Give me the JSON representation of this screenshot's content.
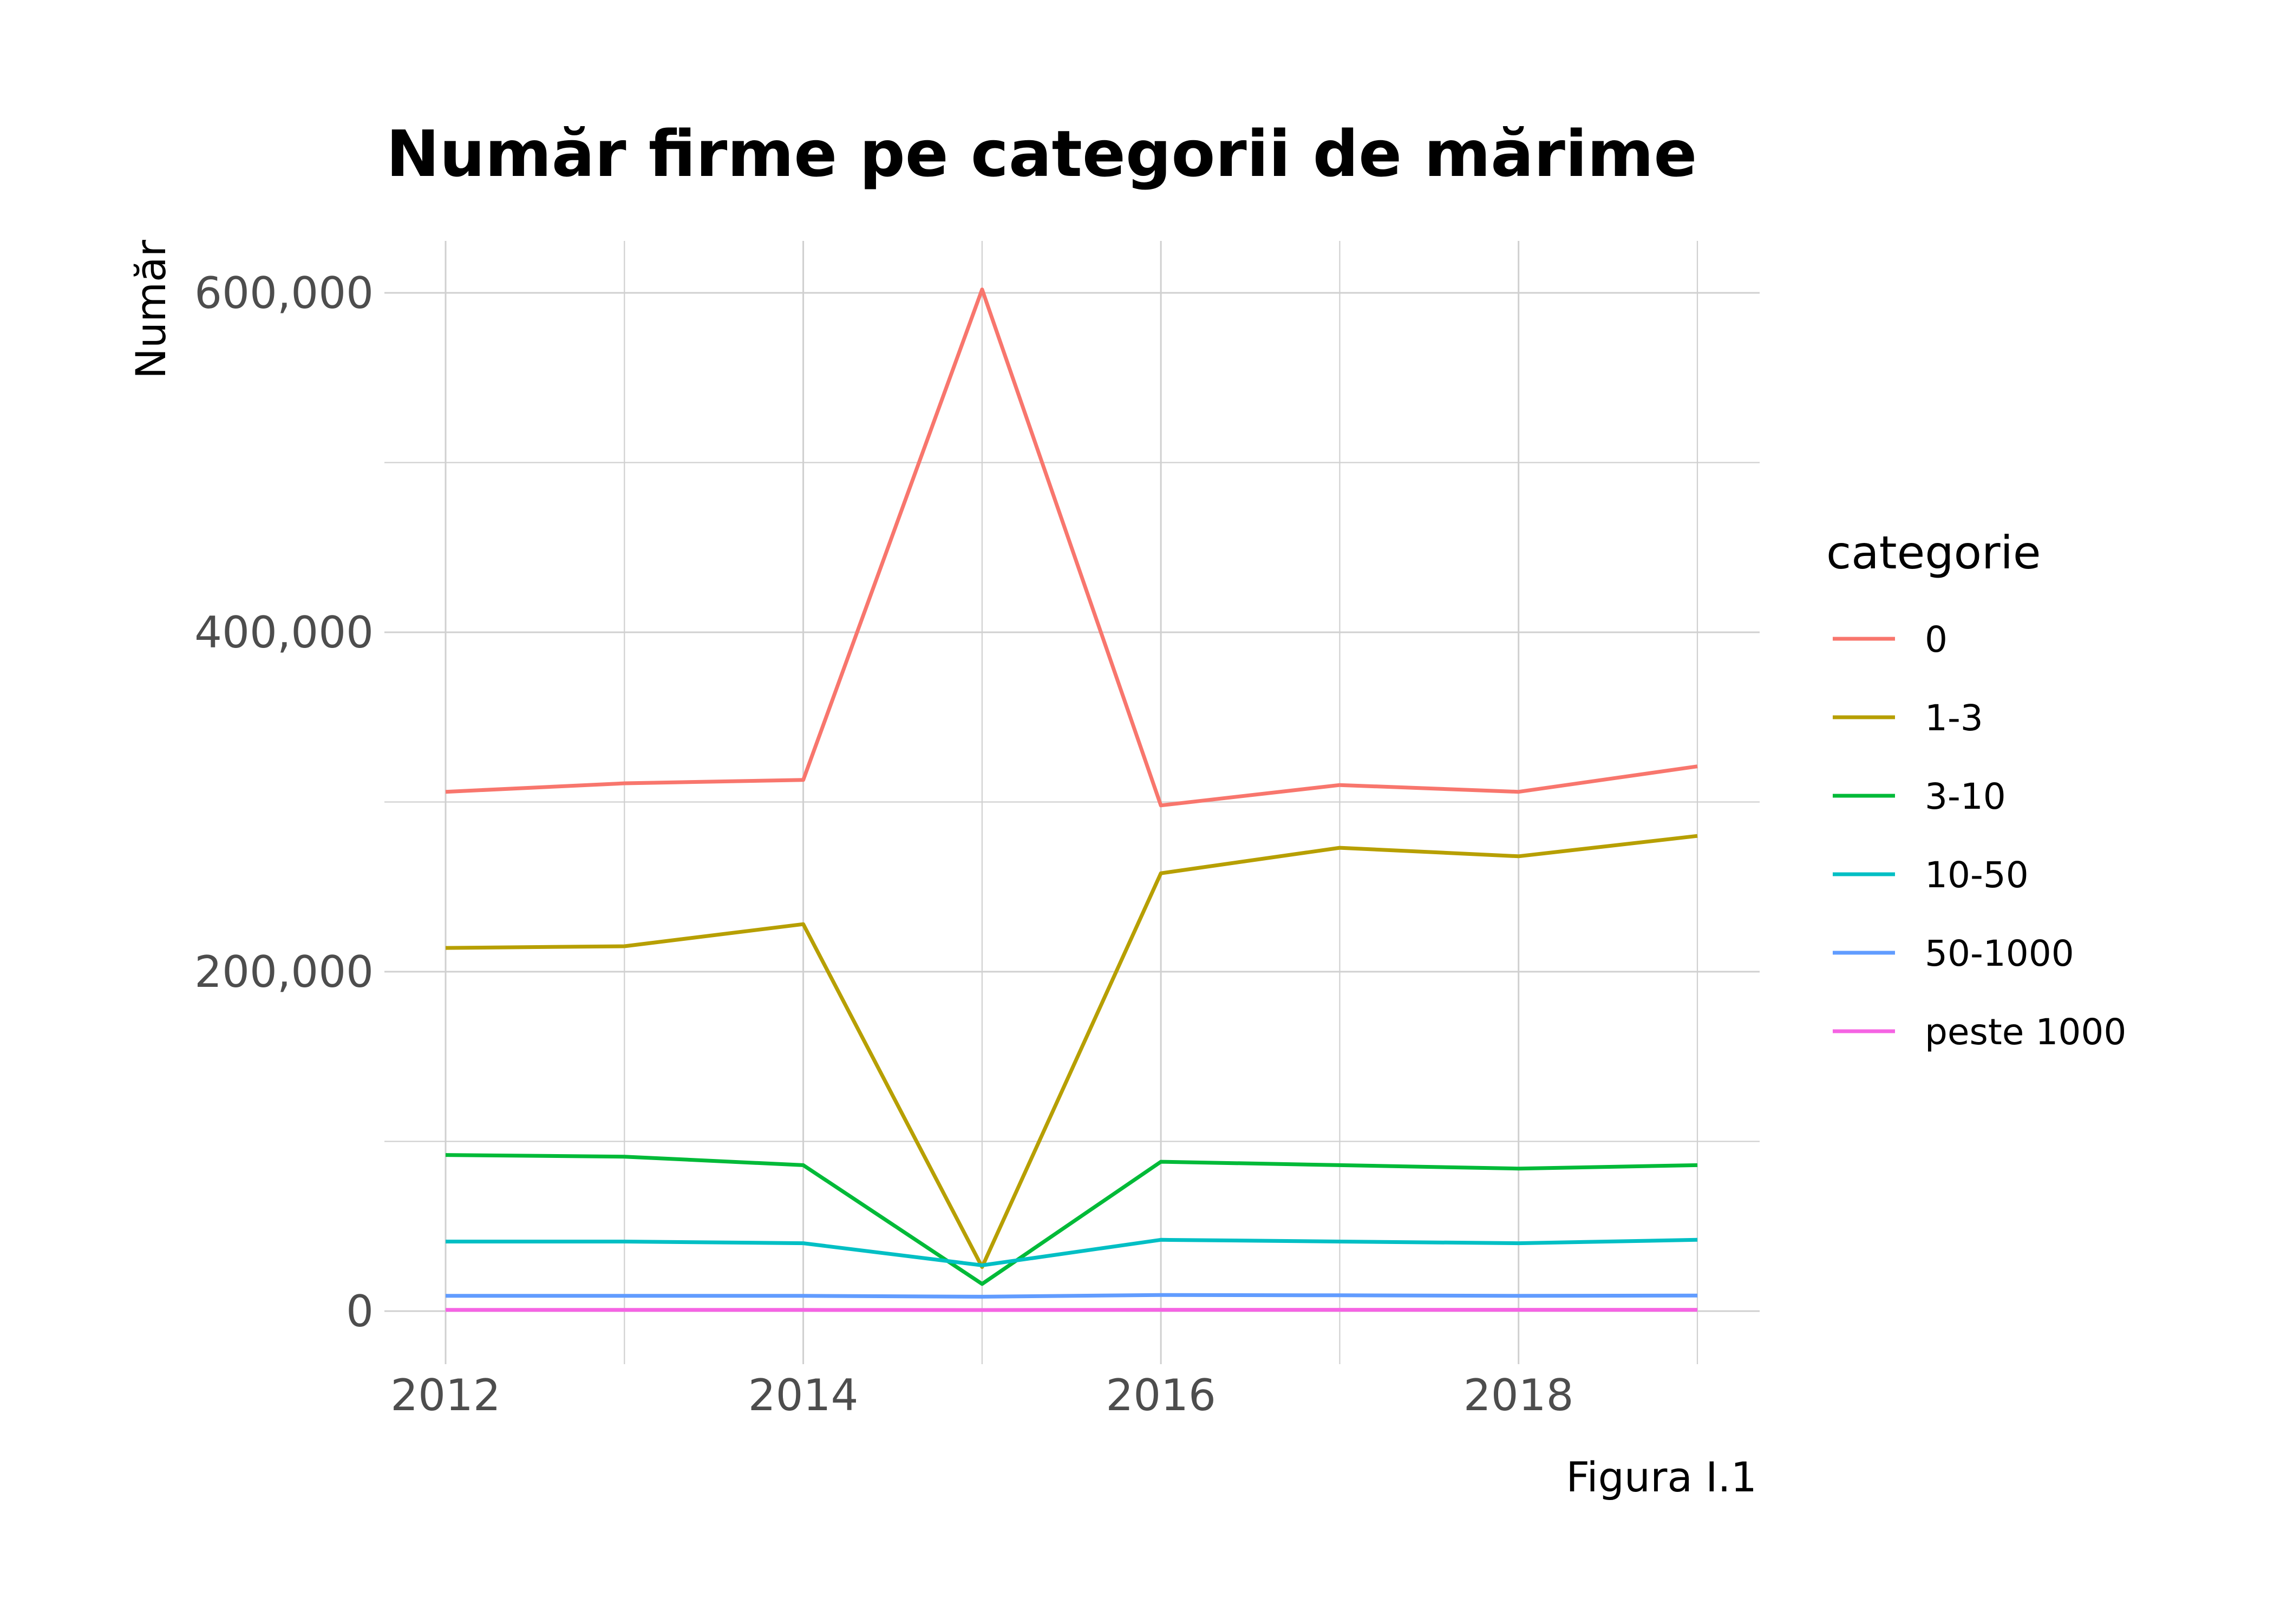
{
  "chart_data": {
    "type": "line",
    "title": "Număr firme pe categorii de mărime",
    "xlabel": "",
    "ylabel": "Număr",
    "caption": "Figura I.1",
    "x": [
      2012,
      2013,
      2014,
      2015,
      2016,
      2017,
      2018,
      2019
    ],
    "xlim": [
      2012,
      2019
    ],
    "ylim": [
      0,
      600000
    ],
    "x_ticks": [
      2012,
      2014,
      2016,
      2018
    ],
    "x_tick_labels": [
      "2012",
      "2014",
      "2016",
      "2018"
    ],
    "y_ticks": [
      0,
      200000,
      400000,
      600000
    ],
    "y_tick_labels": [
      "0",
      "200,000",
      "400,000",
      "600,000"
    ],
    "grid": true,
    "legend": {
      "title": "categorie",
      "position": "right"
    },
    "series": [
      {
        "name": "0",
        "color": "#F8766D",
        "values": [
          306000,
          311000,
          313000,
          602000,
          298000,
          310000,
          306000,
          321000
        ]
      },
      {
        "name": "1-3",
        "color": "#B79F00",
        "values": [
          214000,
          215000,
          228000,
          26000,
          258000,
          273000,
          268000,
          280000
        ]
      },
      {
        "name": "3-10",
        "color": "#00BA38",
        "values": [
          92000,
          91000,
          86000,
          16000,
          88000,
          86000,
          84000,
          86000
        ]
      },
      {
        "name": "10-50",
        "color": "#00BFC4",
        "values": [
          41000,
          41000,
          40000,
          27000,
          42000,
          41000,
          40000,
          42000
        ]
      },
      {
        "name": "50-1000",
        "color": "#619CFF",
        "values": [
          9000,
          9000,
          9000,
          8500,
          9500,
          9300,
          9000,
          9200
        ]
      },
      {
        "name": "peste 1000",
        "color": "#F564E3",
        "values": [
          700,
          700,
          700,
          650,
          750,
          750,
          750,
          750
        ]
      }
    ]
  }
}
